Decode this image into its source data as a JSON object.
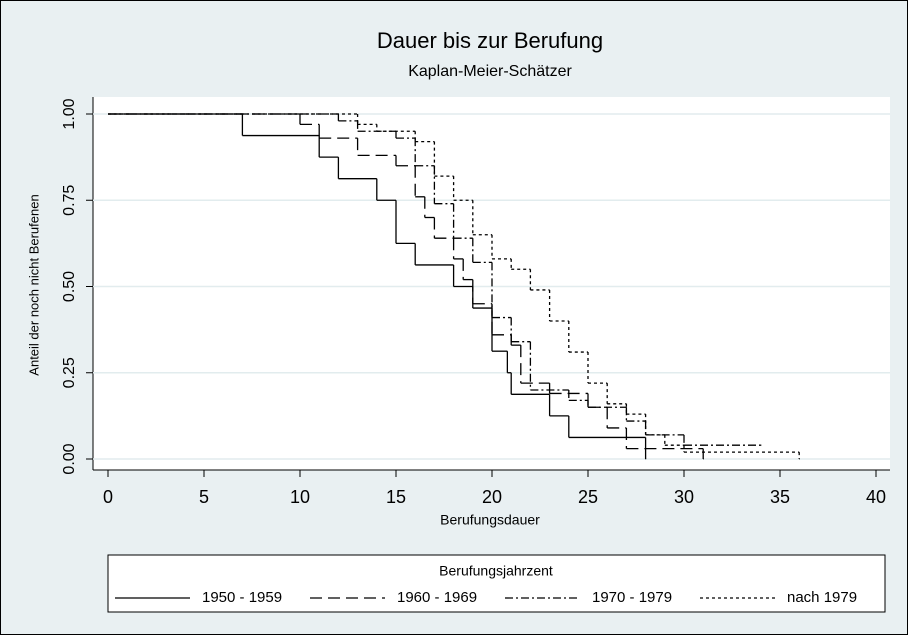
{
  "chart_data": {
    "type": "step",
    "title": "Dauer bis zur Berufung",
    "subtitle": "Kaplan-Meier-Schätzer",
    "x_label": "Berufungsdauer",
    "y_label": "Anteil der noch nicht Berufenen",
    "xlim": [
      0,
      40
    ],
    "xticks": [
      0,
      5,
      10,
      15,
      20,
      25,
      30,
      35,
      40
    ],
    "ylim": [
      0,
      1
    ],
    "yticks": [
      {
        "value": 0,
        "label": "0.00"
      },
      {
        "value": 0.25,
        "label": "0.25"
      },
      {
        "value": 0.5,
        "label": "0.50"
      },
      {
        "value": 0.75,
        "label": "0.75"
      },
      {
        "value": 1,
        "label": "1.00"
      }
    ],
    "grid": true,
    "legend_title": "Berufungsjahrzent",
    "legend_position": "bottom",
    "series": [
      {
        "name": "1950 - 1959",
        "color": "#000000",
        "dash": "solid",
        "x": [
          0,
          7,
          11,
          12,
          14,
          15,
          16,
          18,
          19,
          20,
          20.8,
          21,
          23,
          24,
          28
        ],
        "values": [
          1,
          0.9375,
          0.875,
          0.8125,
          0.75,
          0.625,
          0.5625,
          0.5,
          0.4375,
          0.3125,
          0.25,
          0.1875,
          0.125,
          0.0625,
          0
        ]
      },
      {
        "name": "1960 - 1969",
        "color": "#000000",
        "dash": "dashed",
        "x": [
          0,
          10,
          11,
          13,
          15,
          16,
          16.5,
          17,
          18,
          18.5,
          19,
          20,
          21,
          21.5,
          23,
          25,
          26,
          27,
          31
        ],
        "values": [
          1,
          0.97,
          0.93,
          0.88,
          0.85,
          0.76,
          0.7,
          0.64,
          0.58,
          0.52,
          0.45,
          0.36,
          0.33,
          0.22,
          0.19,
          0.15,
          0.09,
          0.03,
          0
        ]
      },
      {
        "name": "1970 - 1979",
        "color": "#000000",
        "dash": "dashdot",
        "x": [
          0,
          12,
          13,
          15,
          16,
          17,
          18,
          19,
          20,
          21,
          22,
          24,
          25,
          27,
          28,
          30,
          34
        ],
        "values": [
          1,
          0.98,
          0.95,
          0.93,
          0.85,
          0.74,
          0.64,
          0.57,
          0.41,
          0.34,
          0.2,
          0.17,
          0.15,
          0.11,
          0.07,
          0.04,
          0.04
        ]
      },
      {
        "name": "nach 1979",
        "color": "#000000",
        "dash": "dotted",
        "x": [
          0,
          13,
          14,
          16,
          17,
          18,
          19,
          20,
          21,
          22,
          23,
          24,
          25,
          26,
          27,
          28,
          29,
          30,
          36
        ],
        "values": [
          1,
          0.97,
          0.95,
          0.92,
          0.82,
          0.75,
          0.65,
          0.58,
          0.55,
          0.49,
          0.4,
          0.31,
          0.22,
          0.16,
          0.13,
          0.07,
          0.04,
          0.02,
          0
        ]
      }
    ]
  }
}
